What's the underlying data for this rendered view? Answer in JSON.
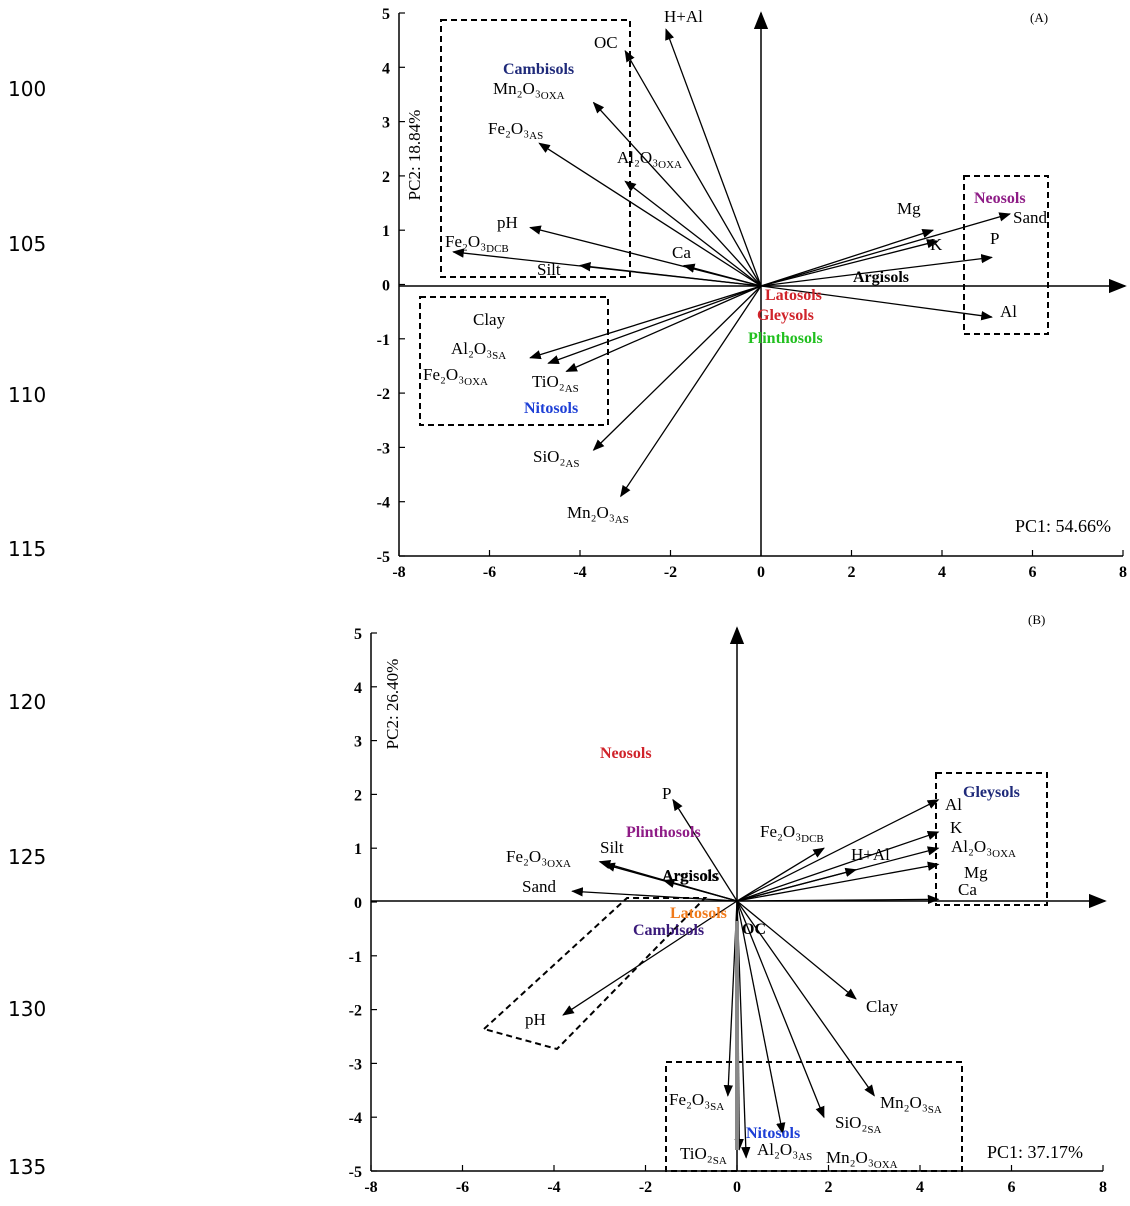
{
  "line_numbers": [
    "100",
    "105",
    "110",
    "115",
    "120",
    "125",
    "130",
    "135"
  ],
  "chart_data": [
    {
      "type": "biplot",
      "panel_label": "(A)",
      "xlabel": "PC1: 54.66%",
      "ylabel": "PC2: 18.84%",
      "xlim": [
        -8,
        8
      ],
      "ylim": [
        -5,
        5
      ],
      "x_ticks": [
        -8,
        -6,
        -4,
        -2,
        0,
        2,
        4,
        6,
        8
      ],
      "y_ticks": [
        -5,
        -4,
        -3,
        -2,
        -1,
        0,
        1,
        2,
        3,
        4,
        5
      ],
      "vectors": [
        {
          "label": "H+Al",
          "sub": "",
          "x": -2.1,
          "y": 4.7
        },
        {
          "label": "OC",
          "sub": "",
          "x": -3.0,
          "y": 4.3
        },
        {
          "label": "Mn₂O₃",
          "sub": "OXA",
          "x": -3.7,
          "y": 3.35
        },
        {
          "label": "Fe₂O₃",
          "sub": "AS",
          "x": -4.9,
          "y": 2.6
        },
        {
          "label": "Al₂O₃",
          "sub": "OXA",
          "x": -3.0,
          "y": 1.9
        },
        {
          "label": "pH",
          "sub": "",
          "x": -5.1,
          "y": 1.05
        },
        {
          "label": "Fe₂O₃",
          "sub": "DCB",
          "x": -6.8,
          "y": 0.6
        },
        {
          "label": "Ca",
          "sub": "",
          "x": -1.7,
          "y": 0.35
        },
        {
          "label": "Silt",
          "sub": "",
          "x": -4.0,
          "y": 0.35
        },
        {
          "label": "Mg",
          "sub": "",
          "x": 3.8,
          "y": 1.0
        },
        {
          "label": "K",
          "sub": "",
          "x": 3.9,
          "y": 0.8
        },
        {
          "label": "Sand",
          "sub": "",
          "x": 5.5,
          "y": 1.3
        },
        {
          "label": "P",
          "sub": "",
          "x": 5.1,
          "y": 0.5
        },
        {
          "label": "Al",
          "sub": "",
          "x": 5.1,
          "y": -0.6
        },
        {
          "label": "Al₂O₃",
          "sub": "SA",
          "x": -5.1,
          "y": -1.35
        },
        {
          "label": "Fe₂O₃",
          "sub": "OXA",
          "x": -4.7,
          "y": -1.45
        },
        {
          "label": "TiO₂",
          "sub": "AS",
          "x": -4.3,
          "y": -1.6
        },
        {
          "label": "SiO₂",
          "sub": "AS",
          "x": -3.7,
          "y": -3.05
        },
        {
          "label": "Mn₂O₃",
          "sub": "AS",
          "x": -3.1,
          "y": -3.9
        }
      ],
      "groups": [
        {
          "name": "Cambisols",
          "color": "#1f2a7a"
        },
        {
          "name": "Neosols",
          "color": "#8e1c86"
        },
        {
          "name": "Argisols",
          "color": "#000000"
        },
        {
          "name": "Latosols",
          "color": "#d0232a"
        },
        {
          "name": "Gleysols",
          "color": "#d0232a"
        },
        {
          "name": "Plinthosols",
          "color": "#22c020"
        },
        {
          "name": "Nitosols",
          "color": "#1d3fd6"
        }
      ]
    },
    {
      "type": "biplot",
      "panel_label": "(B)",
      "xlabel": "PC1: 37.17%",
      "ylabel": "PC2: 26.40%",
      "xlim": [
        -8,
        8
      ],
      "ylim": [
        -5,
        5
      ],
      "x_ticks": [
        -8,
        -6,
        -4,
        -2,
        0,
        2,
        4,
        6,
        8
      ],
      "y_ticks": [
        -5,
        -4,
        -3,
        -2,
        -1,
        0,
        1,
        2,
        3,
        4,
        5
      ],
      "vectors": [
        {
          "label": "P",
          "sub": "",
          "x": -1.4,
          "y": 1.9
        },
        {
          "label": "Fe₂O₃",
          "sub": "DCB",
          "x": 1.9,
          "y": 1.0
        },
        {
          "label": "H+Al",
          "sub": "",
          "x": 2.6,
          "y": 0.6
        },
        {
          "label": "Al",
          "sub": "",
          "x": 4.4,
          "y": 1.9
        },
        {
          "label": "K",
          "sub": "",
          "x": 4.4,
          "y": 1.3
        },
        {
          "label": "Al₂O₃",
          "sub": "OXA",
          "x": 4.4,
          "y": 1.0
        },
        {
          "label": "Mg",
          "sub": "",
          "x": 4.4,
          "y": 0.7
        },
        {
          "label": "Ca",
          "sub": "",
          "x": 4.4,
          "y": 0.05
        },
        {
          "label": "Fe₂O₃",
          "sub": "OXA",
          "x": -3.0,
          "y": 0.75
        },
        {
          "label": "Silt",
          "sub": "",
          "x": -2.9,
          "y": 0.7
        },
        {
          "label": "Argisols",
          "sub": "",
          "x": -1.6,
          "y": 0.4
        },
        {
          "label": "Sand",
          "sub": "",
          "x": -3.6,
          "y": 0.2
        },
        {
          "label": "pH",
          "sub": "",
          "x": -3.8,
          "y": -2.1
        },
        {
          "label": "Clay",
          "sub": "",
          "x": 2.6,
          "y": -1.8
        },
        {
          "label": "Mn₂O₃",
          "sub": "SA",
          "x": 3.0,
          "y": -3.6
        },
        {
          "label": "SiO₂",
          "sub": "SA",
          "x": 1.9,
          "y": -4.0
        },
        {
          "label": "Al₂O₃",
          "sub": "AS",
          "x": 1.0,
          "y": -4.3
        },
        {
          "label": "Fe₂O₃",
          "sub": "SA",
          "x": -0.2,
          "y": -3.6
        },
        {
          "label": "TiO₂",
          "sub": "SA",
          "x": 0.05,
          "y": -4.6
        },
        {
          "label": "Mn₂O₃",
          "sub": "OXA",
          "x": 0.2,
          "y": -4.75
        }
      ],
      "groups": [
        {
          "name": "Neosols",
          "color": "#d0232a"
        },
        {
          "name": "Plinthosols",
          "color": "#8e1c86"
        },
        {
          "name": "Argisols",
          "color": "#000000"
        },
        {
          "name": "Latosols",
          "color": "#f07a1a"
        },
        {
          "name": "Cambisols",
          "color": "#3a1a7a"
        },
        {
          "name": "OC",
          "color": "#000000"
        },
        {
          "name": "Gleysols",
          "color": "#1f2a7a"
        },
        {
          "name": "Nitosols",
          "color": "#1d3fd6"
        }
      ]
    }
  ]
}
